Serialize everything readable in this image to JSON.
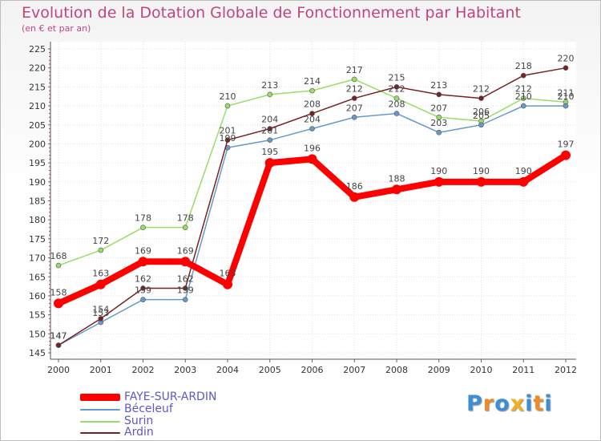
{
  "chart_data": {
    "type": "line",
    "title": "Evolution de la Dotation Globale de Fonctionnement par Habitant",
    "subtitle": "(en € et par an)",
    "xlabel": "",
    "ylabel": "",
    "ylim": [
      145,
      225
    ],
    "yticks": [
      145,
      150,
      155,
      160,
      165,
      170,
      175,
      180,
      185,
      190,
      195,
      200,
      205,
      210,
      215,
      220,
      225
    ],
    "categories": [
      "2000",
      "2001",
      "2002",
      "2003",
      "2004",
      "2005",
      "2006",
      "2007",
      "2008",
      "2009",
      "2010",
      "2011",
      "2012"
    ],
    "legend_position": "bottom-left",
    "series": [
      {
        "name": "FAYE-SUR-ARDIN",
        "color": "#ff0000",
        "values": [
          158,
          163,
          169,
          169,
          163,
          195,
          196,
          186,
          188,
          190,
          190,
          190,
          197
        ]
      },
      {
        "name": "Béceleuf",
        "color": "#6699cc",
        "values": [
          147,
          153,
          159,
          159,
          199,
          201,
          204,
          207,
          208,
          203,
          205,
          210,
          210
        ]
      },
      {
        "name": "Surin",
        "color": "#99dd66",
        "values": [
          168,
          172,
          178,
          178,
          210,
          213,
          214,
          217,
          212,
          207,
          206,
          212,
          211
        ]
      },
      {
        "name": "Ardin",
        "color": "#772222",
        "values": [
          147,
          154,
          162,
          162,
          201,
          204,
          208,
          212,
          215,
          213,
          212,
          218,
          220
        ]
      }
    ]
  },
  "logo": {
    "text": "Proxiti",
    "letters": [
      "P",
      "r",
      "o",
      "x",
      "i",
      "t",
      "i"
    ],
    "colors": [
      "#3a8fd6",
      "#f08a24",
      "#3a8fd6",
      "#f0b020",
      "#3a8fd6",
      "#f08a24",
      "#3a8fd6"
    ]
  }
}
